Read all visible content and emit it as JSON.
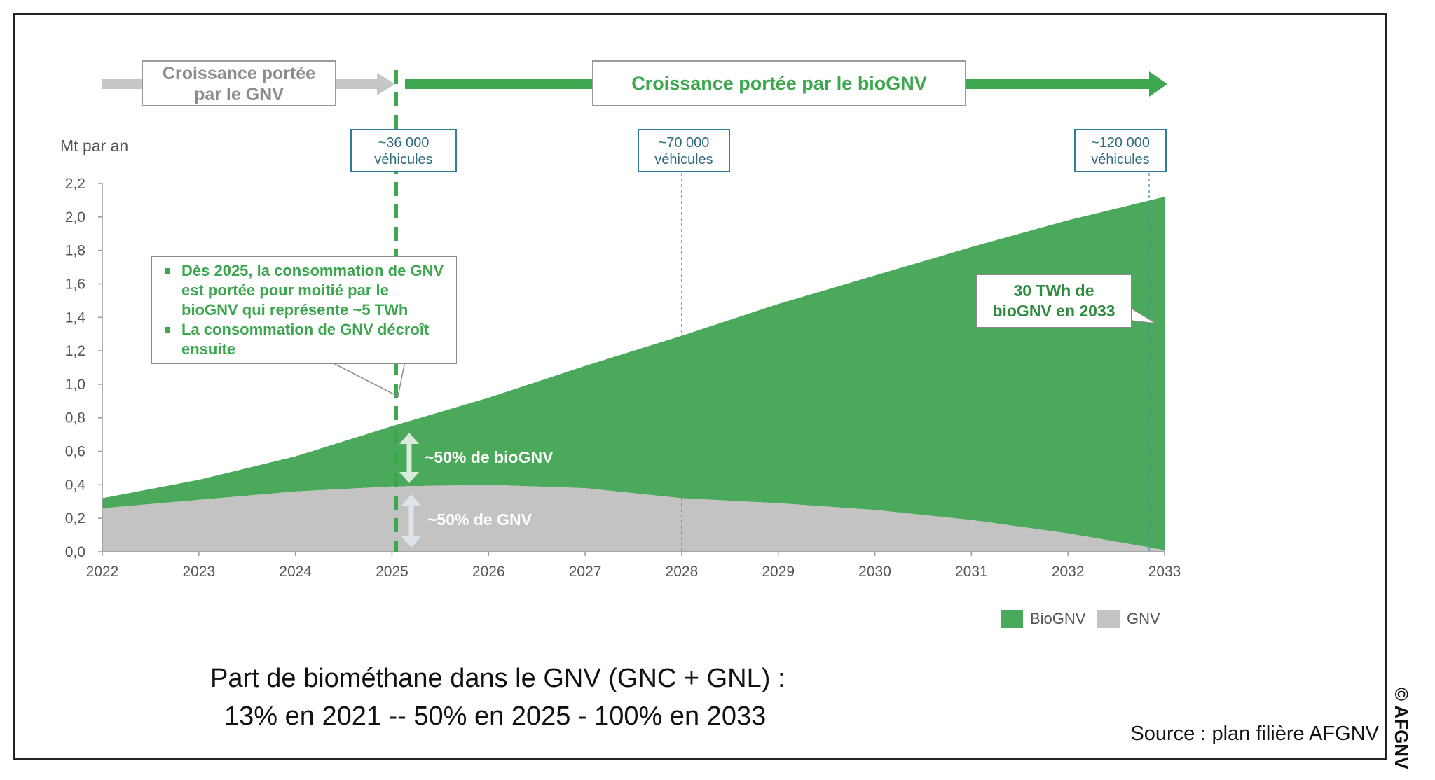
{
  "colors": {
    "biognv": "#4aa95a",
    "gnv": "#c3c3c3",
    "gnv_arrow": "#c6c6c6",
    "dash": "#3ca74e",
    "vline": "#4a8fb0"
  },
  "chart_data": {
    "type": "area",
    "stacked": true,
    "x": [
      2022,
      2023,
      2024,
      2025,
      2026,
      2027,
      2028,
      2029,
      2030,
      2031,
      2032,
      2033
    ],
    "x_tick_labels": [
      "2022",
      "2023",
      "2024",
      "2025",
      "2026",
      "2027",
      "2028",
      "2029",
      "2030",
      "2031",
      "2032",
      "2033"
    ],
    "y_tick_labels": [
      "0,0",
      "0,2",
      "0,4",
      "0,6",
      "0,8",
      "1,0",
      "1,2",
      "1,4",
      "1,6",
      "1,8",
      "2,0",
      "2,2"
    ],
    "ylim": [
      0,
      2.2
    ],
    "ylabel": "Mt par an",
    "series": [
      {
        "name": "GNV",
        "values": [
          0.26,
          0.31,
          0.36,
          0.39,
          0.4,
          0.38,
          0.32,
          0.29,
          0.25,
          0.19,
          0.11,
          0.01
        ]
      },
      {
        "name": "BioGNV",
        "values": [
          0.06,
          0.12,
          0.21,
          0.36,
          0.52,
          0.73,
          0.97,
          1.19,
          1.4,
          1.63,
          1.87,
          2.11
        ]
      }
    ],
    "legend": [
      "BioGNV",
      "GNV"
    ],
    "annotations": {
      "biognv_share": "~50% de bioGNV",
      "gnv_share": "~50% de GNV",
      "vehicle_markers": [
        {
          "year": 2025,
          "line1": "~36 000",
          "line2": "véhicules"
        },
        {
          "year": 2028,
          "line1": "~70 000",
          "line2": "véhicules"
        },
        {
          "year": 2033,
          "line1": "~120 000",
          "line2": "véhicules"
        }
      ]
    }
  },
  "phases": {
    "gnv_line1": "Croissance portée",
    "gnv_line2": "par le GNV",
    "biognv": "Croissance portée par le bioGNV"
  },
  "bullets": [
    "Dès 2025, la consommation de GNV est portée pour moitié par le bioGNV qui représente ~5 TWh",
    "La consommation de GNV décroît ensuite"
  ],
  "note": {
    "line1": "30 TWh de",
    "line2": "bioGNV en 2033"
  },
  "caption": {
    "line1": "Part de biométhane dans le GNV (GNC + GNL) :",
    "line2": "13% en 2021 --  50% en 2025 - 100% en 2033"
  },
  "source": "Source : plan filière AFGNV",
  "copyright": "© AFGNV"
}
